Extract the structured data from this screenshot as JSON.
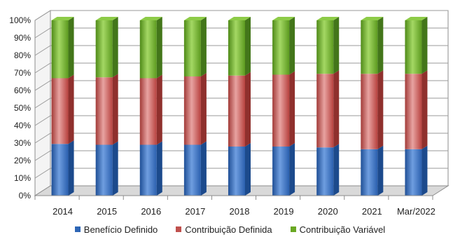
{
  "chart_data": {
    "type": "bar",
    "stacked": true,
    "percent": true,
    "categories": [
      "2014",
      "2015",
      "2016",
      "2017",
      "2018",
      "2019",
      "2020",
      "2021",
      "Mar/2022"
    ],
    "yticks": [
      "0%",
      "10%",
      "20%",
      "30%",
      "40%",
      "50%",
      "60%",
      "70%",
      "80%",
      "90%",
      "100%"
    ],
    "ylim": [
      0,
      100
    ],
    "grid": true,
    "legend_position": "bottom",
    "series": [
      {
        "name": "Benefício Definido",
        "color": "#2e66b5",
        "values": [
          29.5,
          29,
          29,
          29,
          28,
          28,
          27.5,
          26.5,
          26.5
        ]
      },
      {
        "name": "Contribuição Definida",
        "color": "#c0504d",
        "values": [
          37.5,
          38.5,
          38,
          39,
          40.5,
          41,
          42,
          43,
          43
        ]
      },
      {
        "name": "Contribuição Variável",
        "color": "#6aa823",
        "values": [
          33,
          32.5,
          33,
          32,
          31.5,
          31,
          30.5,
          30.5,
          30.5
        ]
      }
    ]
  }
}
